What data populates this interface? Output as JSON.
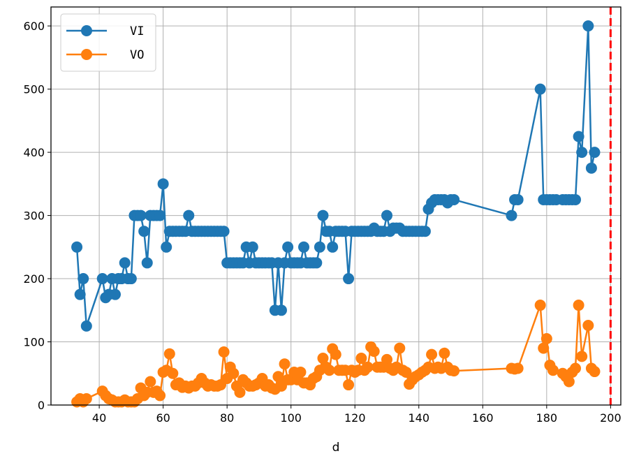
{
  "chart_data": {
    "type": "line",
    "title": "",
    "xlabel": "d",
    "ylabel": "",
    "xlim": [
      24.9,
      203.2
    ],
    "ylim": [
      0,
      630
    ],
    "grid": true,
    "legend_position": "top-left",
    "x_ticks": [
      "40",
      "60",
      "80",
      "100",
      "120",
      "140",
      "160",
      "180",
      "200"
    ],
    "y_ticks": [
      "0",
      "100",
      "200",
      "300",
      "400",
      "500",
      "600"
    ],
    "vline": {
      "x": 200,
      "color": "#ff0000",
      "style": "dashed"
    },
    "series": [
      {
        "name": "VI",
        "color": "#1f77b4",
        "points": [
          [
            33,
            250
          ],
          [
            34,
            175
          ],
          [
            35,
            200
          ],
          [
            36,
            125
          ],
          [
            41,
            200
          ],
          [
            42,
            170
          ],
          [
            43,
            175
          ],
          [
            44,
            200
          ],
          [
            45,
            175
          ],
          [
            46,
            200
          ],
          [
            47,
            200
          ],
          [
            48,
            225
          ],
          [
            49,
            200
          ],
          [
            50,
            200
          ],
          [
            51,
            300
          ],
          [
            52,
            300
          ],
          [
            53,
            300
          ],
          [
            54,
            275
          ],
          [
            55,
            225
          ],
          [
            56,
            300
          ],
          [
            57,
            300
          ],
          [
            58,
            300
          ],
          [
            59,
            300
          ],
          [
            60,
            350
          ],
          [
            61,
            250
          ],
          [
            62,
            275
          ],
          [
            63,
            275
          ],
          [
            64,
            275
          ],
          [
            65,
            275
          ],
          [
            66,
            275
          ],
          [
            67,
            275
          ],
          [
            68,
            300
          ],
          [
            69,
            275
          ],
          [
            70,
            275
          ],
          [
            71,
            275
          ],
          [
            72,
            275
          ],
          [
            73,
            275
          ],
          [
            74,
            275
          ],
          [
            75,
            275
          ],
          [
            76,
            275
          ],
          [
            77,
            275
          ],
          [
            78,
            275
          ],
          [
            79,
            275
          ],
          [
            80,
            225
          ],
          [
            81,
            225
          ],
          [
            82,
            225
          ],
          [
            83,
            225
          ],
          [
            84,
            225
          ],
          [
            85,
            225
          ],
          [
            86,
            250
          ],
          [
            87,
            225
          ],
          [
            88,
            250
          ],
          [
            89,
            225
          ],
          [
            90,
            225
          ],
          [
            91,
            225
          ],
          [
            92,
            225
          ],
          [
            93,
            225
          ],
          [
            94,
            225
          ],
          [
            95,
            150
          ],
          [
            96,
            225
          ],
          [
            97,
            150
          ],
          [
            98,
            225
          ],
          [
            99,
            250
          ],
          [
            100,
            225
          ],
          [
            101,
            225
          ],
          [
            102,
            225
          ],
          [
            103,
            225
          ],
          [
            104,
            250
          ],
          [
            105,
            225
          ],
          [
            106,
            225
          ],
          [
            107,
            225
          ],
          [
            108,
            225
          ],
          [
            109,
            250
          ],
          [
            110,
            300
          ],
          [
            111,
            275
          ],
          [
            112,
            275
          ],
          [
            113,
            250
          ],
          [
            114,
            275
          ],
          [
            115,
            275
          ],
          [
            116,
            275
          ],
          [
            117,
            275
          ],
          [
            118,
            200
          ],
          [
            119,
            275
          ],
          [
            120,
            275
          ],
          [
            121,
            275
          ],
          [
            122,
            275
          ],
          [
            123,
            275
          ],
          [
            124,
            275
          ],
          [
            125,
            275
          ],
          [
            126,
            280
          ],
          [
            127,
            275
          ],
          [
            128,
            275
          ],
          [
            129,
            275
          ],
          [
            130,
            300
          ],
          [
            131,
            275
          ],
          [
            132,
            280
          ],
          [
            133,
            280
          ],
          [
            134,
            280
          ],
          [
            135,
            275
          ],
          [
            136,
            275
          ],
          [
            137,
            275
          ],
          [
            138,
            275
          ],
          [
            139,
            275
          ],
          [
            140,
            275
          ],
          [
            141,
            275
          ],
          [
            142,
            275
          ],
          [
            143,
            310
          ],
          [
            144,
            320
          ],
          [
            145,
            325
          ],
          [
            146,
            325
          ],
          [
            147,
            325
          ],
          [
            148,
            325
          ],
          [
            149,
            320
          ],
          [
            150,
            325
          ],
          [
            151,
            325
          ],
          [
            169,
            300
          ],
          [
            170,
            325
          ],
          [
            171,
            325
          ],
          [
            178,
            500
          ],
          [
            179,
            325
          ],
          [
            180,
            325
          ],
          [
            181,
            325
          ],
          [
            182,
            325
          ],
          [
            183,
            325
          ],
          [
            185,
            325
          ],
          [
            186,
            325
          ],
          [
            187,
            325
          ],
          [
            188,
            325
          ],
          [
            189,
            325
          ],
          [
            190,
            425
          ],
          [
            191,
            400
          ],
          [
            193,
            600
          ],
          [
            194,
            375
          ],
          [
            195,
            400
          ]
        ]
      },
      {
        "name": "VO",
        "color": "#ff7f0e",
        "points": [
          [
            33,
            5
          ],
          [
            34,
            10
          ],
          [
            35,
            5
          ],
          [
            36,
            10
          ],
          [
            41,
            22
          ],
          [
            42,
            15
          ],
          [
            43,
            10
          ],
          [
            44,
            8
          ],
          [
            45,
            5
          ],
          [
            46,
            5
          ],
          [
            47,
            5
          ],
          [
            48,
            8
          ],
          [
            49,
            5
          ],
          [
            50,
            5
          ],
          [
            51,
            5
          ],
          [
            52,
            10
          ],
          [
            53,
            27
          ],
          [
            54,
            15
          ],
          [
            55,
            20
          ],
          [
            56,
            37
          ],
          [
            57,
            20
          ],
          [
            58,
            22
          ],
          [
            59,
            15
          ],
          [
            60,
            52
          ],
          [
            61,
            55
          ],
          [
            62,
            81
          ],
          [
            63,
            50
          ],
          [
            64,
            32
          ],
          [
            65,
            35
          ],
          [
            66,
            28
          ],
          [
            67,
            30
          ],
          [
            68,
            27
          ],
          [
            69,
            30
          ],
          [
            70,
            30
          ],
          [
            71,
            35
          ],
          [
            72,
            42
          ],
          [
            73,
            35
          ],
          [
            74,
            30
          ],
          [
            75,
            32
          ],
          [
            76,
            30
          ],
          [
            77,
            30
          ],
          [
            78,
            32
          ],
          [
            79,
            84
          ],
          [
            80,
            42
          ],
          [
            81,
            60
          ],
          [
            82,
            50
          ],
          [
            83,
            30
          ],
          [
            84,
            20
          ],
          [
            85,
            40
          ],
          [
            86,
            35
          ],
          [
            87,
            30
          ],
          [
            88,
            30
          ],
          [
            89,
            32
          ],
          [
            90,
            35
          ],
          [
            91,
            42
          ],
          [
            92,
            30
          ],
          [
            93,
            32
          ],
          [
            94,
            27
          ],
          [
            95,
            25
          ],
          [
            96,
            45
          ],
          [
            97,
            30
          ],
          [
            98,
            65
          ],
          [
            99,
            40
          ],
          [
            100,
            40
          ],
          [
            101,
            52
          ],
          [
            102,
            40
          ],
          [
            103,
            52
          ],
          [
            104,
            35
          ],
          [
            105,
            35
          ],
          [
            106,
            32
          ],
          [
            107,
            42
          ],
          [
            108,
            45
          ],
          [
            109,
            55
          ],
          [
            110,
            74
          ],
          [
            111,
            60
          ],
          [
            112,
            55
          ],
          [
            113,
            89
          ],
          [
            114,
            80
          ],
          [
            115,
            55
          ],
          [
            116,
            55
          ],
          [
            117,
            55
          ],
          [
            118,
            32
          ],
          [
            119,
            55
          ],
          [
            120,
            52
          ],
          [
            121,
            55
          ],
          [
            122,
            74
          ],
          [
            123,
            55
          ],
          [
            124,
            60
          ],
          [
            125,
            92
          ],
          [
            126,
            85
          ],
          [
            127,
            60
          ],
          [
            128,
            60
          ],
          [
            129,
            60
          ],
          [
            130,
            72
          ],
          [
            131,
            58
          ],
          [
            132,
            55
          ],
          [
            133,
            60
          ],
          [
            134,
            90
          ],
          [
            135,
            55
          ],
          [
            136,
            52
          ],
          [
            137,
            33
          ],
          [
            138,
            40
          ],
          [
            139,
            45
          ],
          [
            140,
            48
          ],
          [
            141,
            52
          ],
          [
            142,
            55
          ],
          [
            143,
            60
          ],
          [
            144,
            80
          ],
          [
            145,
            58
          ],
          [
            146,
            60
          ],
          [
            147,
            58
          ],
          [
            148,
            82
          ],
          [
            149,
            60
          ],
          [
            150,
            55
          ],
          [
            151,
            54
          ],
          [
            169,
            58
          ],
          [
            170,
            57
          ],
          [
            171,
            58
          ],
          [
            178,
            158
          ],
          [
            179,
            90
          ],
          [
            180,
            105
          ],
          [
            181,
            63
          ],
          [
            182,
            55
          ],
          [
            185,
            50
          ],
          [
            186,
            45
          ],
          [
            187,
            37
          ],
          [
            188,
            52
          ],
          [
            189,
            58
          ],
          [
            190,
            158
          ],
          [
            191,
            77
          ],
          [
            193,
            126
          ],
          [
            194,
            58
          ],
          [
            195,
            53
          ]
        ]
      }
    ]
  }
}
